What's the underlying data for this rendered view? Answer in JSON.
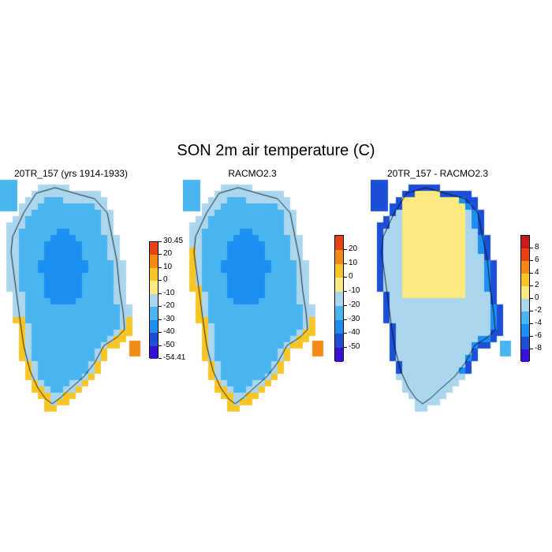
{
  "title": "SON 2m air temperature (C)",
  "panels": [
    {
      "title": "20TR_157 (yrs 1914-1933)",
      "colors": [
        "#3a10d8",
        "#1b4fd6",
        "#1c8ff1",
        "#4ab6f0",
        "#aad6ee",
        "#fce97f",
        "#f7c525",
        "#f28a15",
        "#e84214",
        "#c81c1c"
      ],
      "labels": [
        "-54.41",
        "-50",
        "-40",
        "-30",
        "-20",
        "-10",
        "0",
        "10",
        "20",
        "30.45"
      ]
    },
    {
      "title": "RACMO2.3",
      "colors": [
        "#3a10d8",
        "#1b4fd6",
        "#1c8ff1",
        "#4ab6f0",
        "#aad6ee",
        "#fce97f",
        "#f7c525",
        "#f28a15",
        "#e84214",
        "#c81c1c"
      ],
      "labels": [
        "-50",
        "-40",
        "-30",
        "-20",
        "-10",
        "0",
        "10",
        "20"
      ]
    },
    {
      "title": "20TR_157 - RACMO2.3",
      "colors": [
        "#3a10d8",
        "#1b4fd6",
        "#1c8ff1",
        "#4ab6f0",
        "#aad6ee",
        "#fce97f",
        "#f7c525",
        "#f28a15",
        "#e84214",
        "#c81c1c"
      ],
      "labels": [
        "-8",
        "-6",
        "-4",
        "-2",
        "0",
        "2",
        "4",
        "6",
        "8"
      ]
    }
  ]
}
